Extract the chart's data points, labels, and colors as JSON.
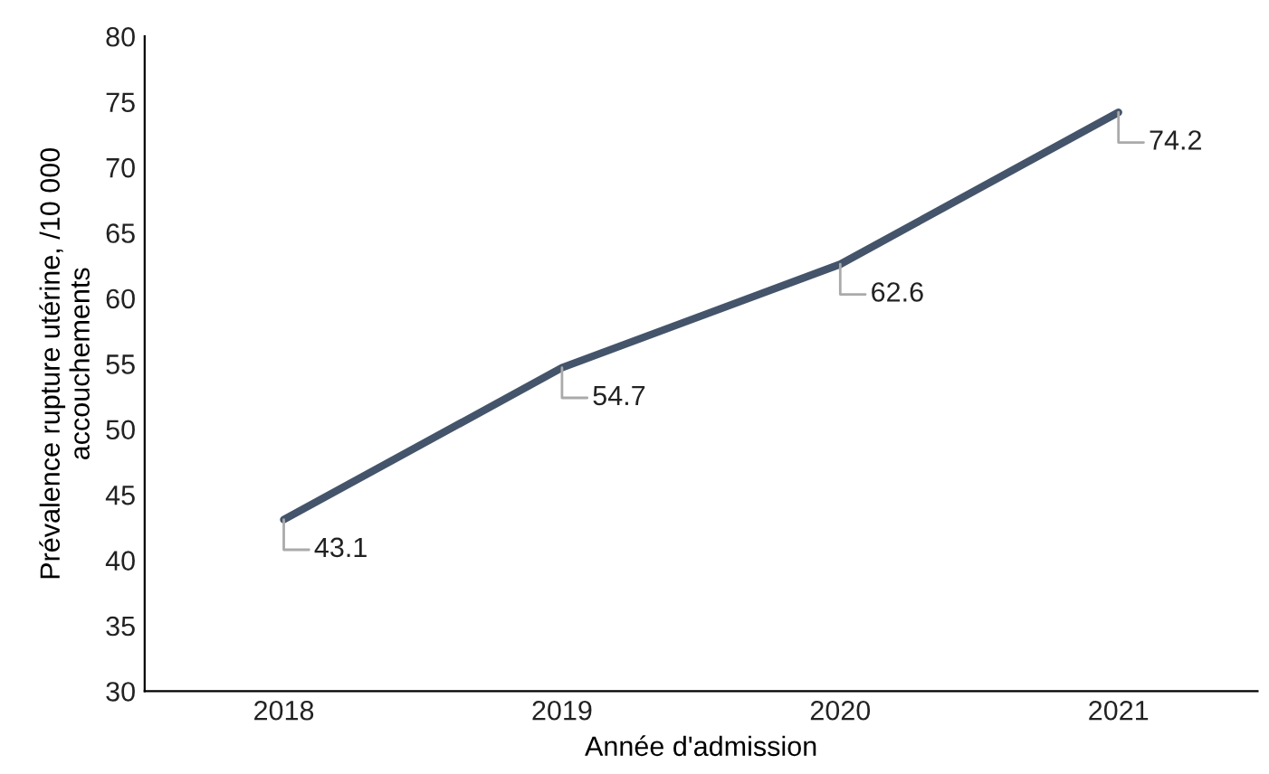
{
  "chart_data": {
    "type": "line",
    "xlabel": "Année d'admission",
    "ylabel": "Prévalence rupture utérine, /10 000\naccouchements",
    "categories": [
      "2018",
      "2019",
      "2020",
      "2021"
    ],
    "series": [
      {
        "color": "#44546a",
        "values": [
          43.1,
          54.7,
          62.6,
          74.2
        ]
      }
    ],
    "ylim": [
      30,
      80
    ],
    "yticks": [
      30,
      35,
      40,
      45,
      50,
      55,
      60,
      65,
      70,
      75,
      80
    ],
    "data_labels": true,
    "grid": false,
    "legend": false,
    "marker": "none",
    "line_style": "solid"
  }
}
